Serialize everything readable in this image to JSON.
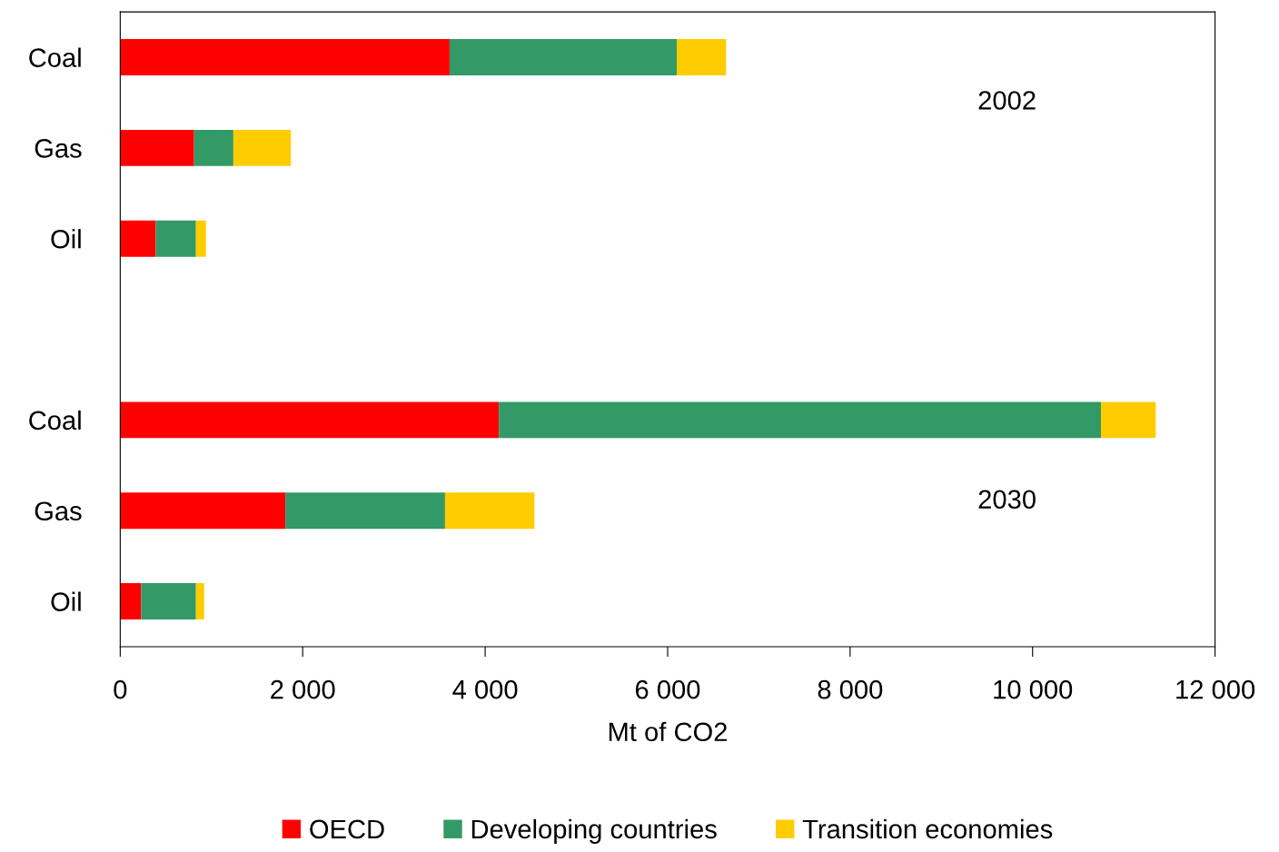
{
  "chart_data": {
    "type": "bar",
    "orientation": "horizontal",
    "stacked": true,
    "xlabel": "Mt of CO2",
    "categories": [
      "Coal",
      "Gas",
      "Oil",
      null,
      "Coal",
      "Gas",
      "Oil"
    ],
    "series": [
      {
        "name": "OECD",
        "color": "#ff0000",
        "values": [
          3610,
          810,
          390,
          null,
          4150,
          1810,
          230
        ]
      },
      {
        "name": "Developing countries",
        "color": "#339966",
        "values": [
          2490,
          430,
          440,
          null,
          6600,
          1750,
          600
        ]
      },
      {
        "name": "Transition economies",
        "color": "#ffcc00",
        "values": [
          540,
          630,
          110,
          null,
          600,
          980,
          90
        ]
      }
    ],
    "xlim": [
      0,
      12000
    ],
    "xticks": [
      0,
      {
        "value": 2000,
        "label": "2 000"
      },
      {
        "value": 4000,
        "label": "4 000"
      },
      {
        "value": 6000,
        "label": "6 000"
      },
      {
        "value": 8000,
        "label": "8 000"
      },
      {
        "value": 10000,
        "label": "10 000"
      },
      {
        "value": 12000,
        "label": "12 000"
      }
    ],
    "annotations": [
      "2002",
      "2030"
    ],
    "grid": false,
    "legend": "bottom"
  }
}
